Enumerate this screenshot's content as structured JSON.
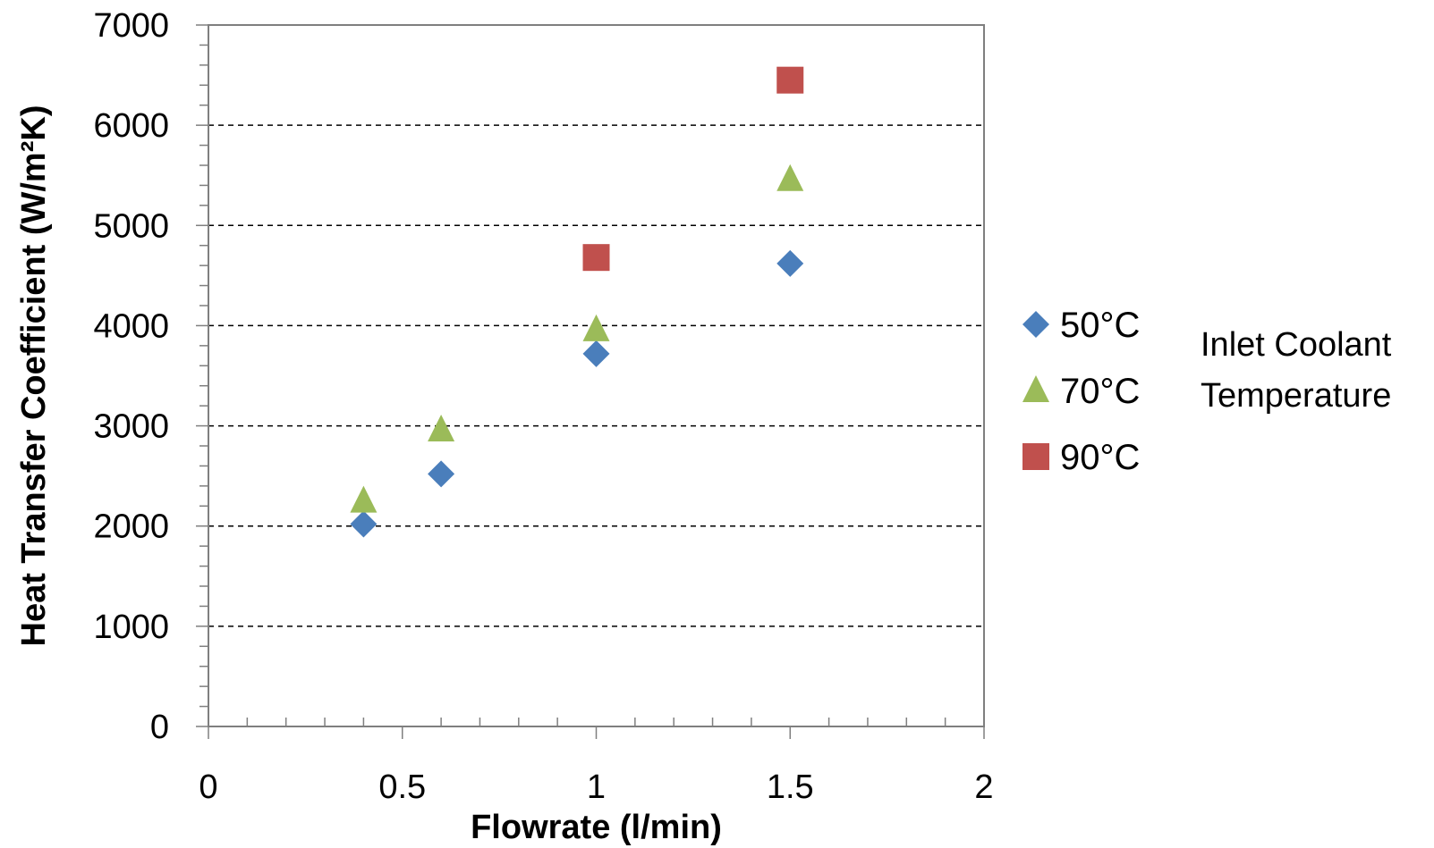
{
  "chart_data": {
    "type": "scatter",
    "xlabel": "Flowrate (l/min)",
    "ylabel": "Heat Transfer Coefficient (W/m²K)",
    "xlim": [
      0,
      2
    ],
    "ylim": [
      0,
      7000
    ],
    "x_ticks": [
      0,
      0.5,
      1,
      1.5,
      2
    ],
    "x_tick_labels": [
      "0",
      "0.5",
      "1",
      "1.5",
      "2"
    ],
    "y_ticks": [
      0,
      1000,
      2000,
      3000,
      4000,
      5000,
      6000,
      7000
    ],
    "y_tick_labels": [
      "0",
      "1000",
      "2000",
      "3000",
      "4000",
      "5000",
      "6000",
      "7000"
    ],
    "x_minor_step": 0.1,
    "y_minor_step": 200,
    "grid": "horizontal dashed",
    "legend_position": "right",
    "legend_title": [
      "Inlet Coolant",
      "Temperature"
    ],
    "series": [
      {
        "name": "50°C",
        "marker": "diamond",
        "color": "#4a7ebb",
        "x": [
          0.4,
          0.6,
          1.0,
          1.5
        ],
        "y": [
          2020,
          2520,
          3720,
          4620
        ]
      },
      {
        "name": "70°C",
        "marker": "triangle",
        "color": "#9bbb59",
        "x": [
          0.4,
          0.6,
          1.0,
          1.5
        ],
        "y": [
          2250,
          2960,
          3960,
          5460
        ]
      },
      {
        "name": "90°C",
        "marker": "square",
        "color": "#c0504d",
        "x": [
          1.0,
          1.5
        ],
        "y": [
          4680,
          6450
        ]
      }
    ]
  }
}
